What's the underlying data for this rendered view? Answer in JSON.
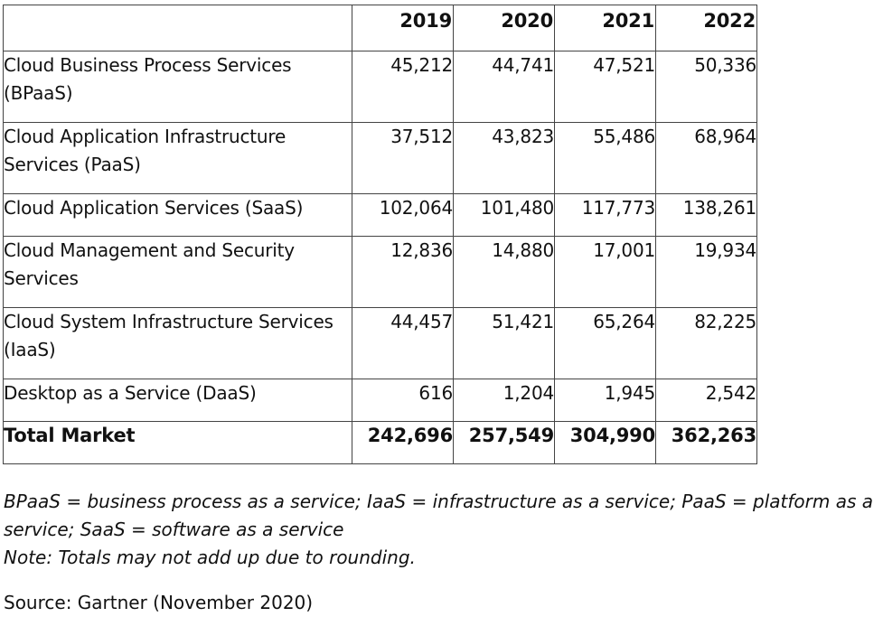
{
  "chart_data": {
    "type": "table",
    "columns": [
      "2019",
      "2020",
      "2021",
      "2022"
    ],
    "rows": [
      {
        "label": "Cloud Business Process Services (BPaaS)",
        "values": [
          "45,212",
          "44,741",
          "47,521",
          "50,336"
        ]
      },
      {
        "label": "Cloud Application Infrastructure Services (PaaS)",
        "values": [
          "37,512",
          "43,823",
          "55,486",
          "68,964"
        ]
      },
      {
        "label": "Cloud Application Services (SaaS)",
        "values": [
          "102,064",
          "101,480",
          "117,773",
          "138,261"
        ]
      },
      {
        "label": "Cloud Management and Security Services",
        "values": [
          "12,836",
          "14,880",
          "17,001",
          "19,934"
        ]
      },
      {
        "label": "Cloud System Infrastructure Services (IaaS)",
        "values": [
          "44,457",
          "51,421",
          "65,264",
          "82,225"
        ]
      },
      {
        "label": "Desktop as a Service (DaaS)",
        "values": [
          "616",
          "1,204",
          "1,945",
          "2,542"
        ]
      }
    ],
    "total": {
      "label": "Total Market",
      "values": [
        "242,696",
        "257,549",
        "304,990",
        "362,263"
      ]
    }
  },
  "notes": {
    "abbreviations": "BPaaS = business process as a service; IaaS = infrastructure as a service; PaaS = platform as a service; SaaS = software as a service",
    "rounding": "Note: Totals may not add up due to rounding.",
    "source": "Source: Gartner (November 2020)"
  },
  "colors": {
    "border": "#444444",
    "text": "#111111",
    "background": "#ffffff"
  }
}
